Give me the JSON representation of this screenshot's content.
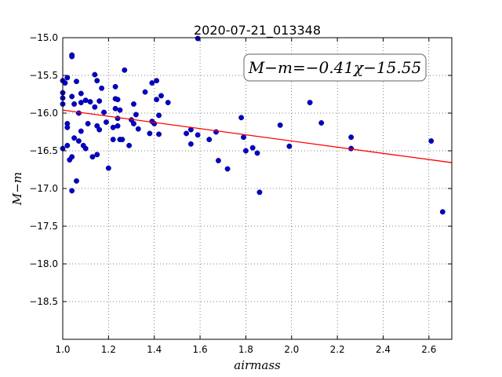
{
  "chart_data": {
    "type": "scatter",
    "title": "2020-07-21_013348",
    "xlabel": "airmass",
    "ylabel": "M−m",
    "xlim": [
      1.0,
      2.7
    ],
    "ylim": [
      -19.0,
      -15.0
    ],
    "y_inverted": true,
    "grid": true,
    "x_ticks": [
      "1.0",
      "1.2",
      "1.4",
      "1.6",
      "1.8",
      "2.0",
      "2.2",
      "2.4",
      "2.6"
    ],
    "y_ticks": [
      "−15.0",
      "−15.5",
      "−16.0",
      "−16.5",
      "−17.0",
      "−17.5",
      "−18.0",
      "−18.5"
    ],
    "annotation": "M−m=−0.41χ−15.55",
    "fit": {
      "slope": -0.41,
      "intercept": -15.55,
      "color": "#ff0000"
    },
    "point_color": "#0000cc",
    "points": [
      [
        1.0,
        -15.57
      ],
      [
        1.0,
        -15.73
      ],
      [
        1.0,
        -15.8
      ],
      [
        1.0,
        -15.88
      ],
      [
        1.0,
        -16.47
      ],
      [
        1.01,
        -15.6
      ],
      [
        1.02,
        -15.53
      ],
      [
        1.02,
        -16.14
      ],
      [
        1.02,
        -16.19
      ],
      [
        1.02,
        -16.43
      ],
      [
        1.03,
        -16.62
      ],
      [
        1.04,
        -16.58
      ],
      [
        1.04,
        -17.03
      ],
      [
        1.04,
        -15.23
      ],
      [
        1.04,
        -15.25
      ],
      [
        1.04,
        -15.78
      ],
      [
        1.05,
        -15.88
      ],
      [
        1.05,
        -16.33
      ],
      [
        1.06,
        -15.58
      ],
      [
        1.06,
        -16.9
      ],
      [
        1.07,
        -16.0
      ],
      [
        1.07,
        -16.37
      ],
      [
        1.08,
        -15.74
      ],
      [
        1.08,
        -15.86
      ],
      [
        1.08,
        -16.24
      ],
      [
        1.09,
        -16.43
      ],
      [
        1.1,
        -15.83
      ],
      [
        1.1,
        -16.47
      ],
      [
        1.11,
        -16.14
      ],
      [
        1.12,
        -15.85
      ],
      [
        1.13,
        -16.58
      ],
      [
        1.14,
        -15.49
      ],
      [
        1.14,
        -15.92
      ],
      [
        1.15,
        -15.57
      ],
      [
        1.15,
        -16.55
      ],
      [
        1.15,
        -16.17
      ],
      [
        1.16,
        -15.84
      ],
      [
        1.16,
        -16.22
      ],
      [
        1.17,
        -15.67
      ],
      [
        1.18,
        -15.99
      ],
      [
        1.19,
        -16.12
      ],
      [
        1.2,
        -16.73
      ],
      [
        1.22,
        -16.35
      ],
      [
        1.22,
        -16.19
      ],
      [
        1.23,
        -15.65
      ],
      [
        1.23,
        -15.81
      ],
      [
        1.23,
        -15.94
      ],
      [
        1.24,
        -16.07
      ],
      [
        1.24,
        -16.17
      ],
      [
        1.24,
        -15.82
      ],
      [
        1.25,
        -15.96
      ],
      [
        1.25,
        -16.35
      ],
      [
        1.26,
        -16.35
      ],
      [
        1.27,
        -15.43
      ],
      [
        1.29,
        -16.43
      ],
      [
        1.3,
        -16.09
      ],
      [
        1.31,
        -15.88
      ],
      [
        1.31,
        -16.14
      ],
      [
        1.32,
        -16.02
      ],
      [
        1.33,
        -16.21
      ],
      [
        1.36,
        -15.72
      ],
      [
        1.38,
        -16.27
      ],
      [
        1.39,
        -15.6
      ],
      [
        1.39,
        -16.11
      ],
      [
        1.4,
        -16.14
      ],
      [
        1.41,
        -15.57
      ],
      [
        1.41,
        -15.82
      ],
      [
        1.42,
        -16.03
      ],
      [
        1.42,
        -16.28
      ],
      [
        1.43,
        -15.77
      ],
      [
        1.46,
        -15.86
      ],
      [
        1.54,
        -16.27
      ],
      [
        1.56,
        -16.22
      ],
      [
        1.56,
        -16.41
      ],
      [
        1.59,
        -16.29
      ],
      [
        1.59,
        -15.01
      ],
      [
        1.64,
        -16.35
      ],
      [
        1.67,
        -16.25
      ],
      [
        1.68,
        -16.63
      ],
      [
        1.72,
        -16.74
      ],
      [
        1.78,
        -16.06
      ],
      [
        1.79,
        -16.32
      ],
      [
        1.8,
        -16.5
      ],
      [
        1.83,
        -16.46
      ],
      [
        1.85,
        -16.53
      ],
      [
        1.86,
        -17.05
      ],
      [
        1.95,
        -16.16
      ],
      [
        1.99,
        -16.44
      ],
      [
        2.08,
        -15.86
      ],
      [
        2.13,
        -16.13
      ],
      [
        2.26,
        -16.32
      ],
      [
        2.26,
        -16.47
      ],
      [
        2.61,
        -16.37
      ],
      [
        2.66,
        -17.31
      ]
    ]
  }
}
